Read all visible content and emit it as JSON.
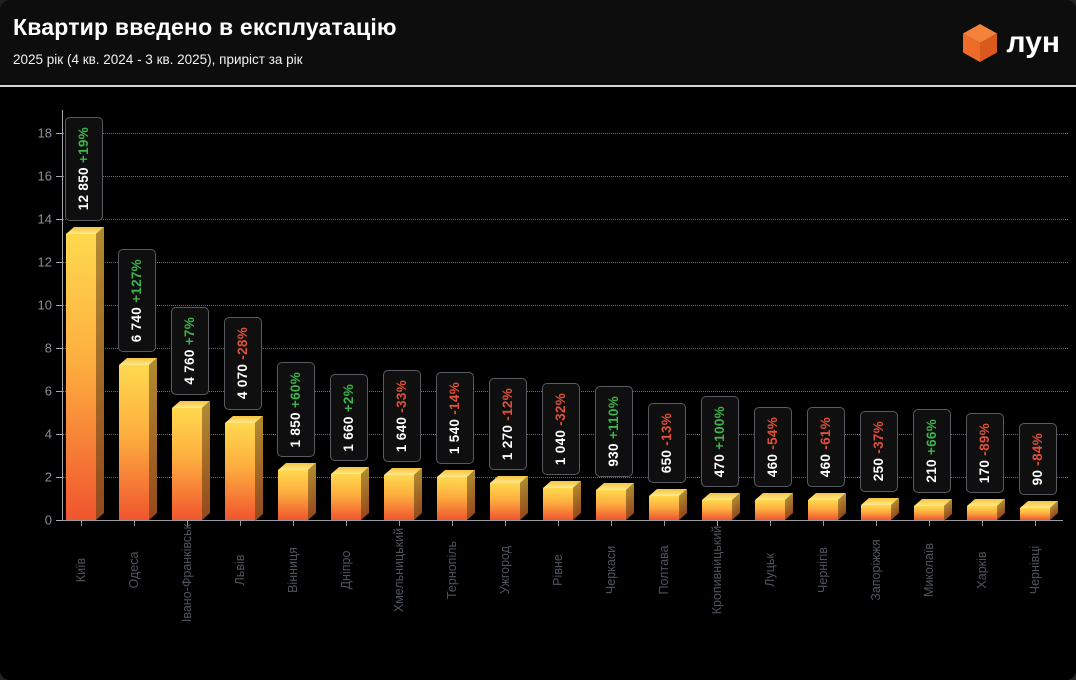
{
  "header": {
    "title": "Квартир введено в експлуатацію",
    "subtitle": "2025 рік (4 кв. 2024 - 3 кв. 2025), приріст за рік",
    "logo_text": "лун"
  },
  "chart_data": {
    "type": "bar",
    "title": "Квартир введено в експлуатацію",
    "subtitle": "2025 рік (4 кв. 2024 - 3 кв. 2025), приріст за рік",
    "xlabel": "",
    "ylabel": "",
    "ylim": [
      0,
      19
    ],
    "yticks": [
      0,
      2,
      4,
      6,
      8,
      10,
      12,
      14,
      16,
      18
    ],
    "y_axis_scale": 1000,
    "grid": "horizontal-dotted",
    "legend": "none",
    "categories": [
      "Київ",
      "Одеса",
      "Івано-Франківськ",
      "Львів",
      "Вінниця",
      "Дніпро",
      "Хмельницький",
      "Тернопіль",
      "Ужгород",
      "Рівне",
      "Черкаси",
      "Полтава",
      "Кропивницький",
      "Луцьк",
      "Чернігів",
      "Запоріжжя",
      "Миколаїв",
      "Харків",
      "Чернівці"
    ],
    "values": [
      12850,
      6740,
      4760,
      4070,
      1850,
      1660,
      1640,
      1540,
      1270,
      1040,
      930,
      650,
      470,
      460,
      460,
      250,
      210,
      170,
      90
    ],
    "value_labels": [
      "12 850",
      "6 740",
      "4 760",
      "4 070",
      "1 850",
      "1 660",
      "1 640",
      "1 540",
      "1 270",
      "1 040",
      "930",
      "650",
      "470",
      "460",
      "460",
      "250",
      "210",
      "170",
      "90"
    ],
    "change_labels": [
      "+19%",
      "+127%",
      "+7%",
      "-28%",
      "+60%",
      "+2%",
      "-33%",
      "-14%",
      "-12%",
      "-32%",
      "+110%",
      "-13%",
      "+100%",
      "-54%",
      "-61%",
      "-37%",
      "+66%",
      "-89%",
      "-84%"
    ],
    "colors": {
      "background": "#000000",
      "header_background": "#0d0d0d",
      "bar_gradient_top": "#ffd94e",
      "bar_gradient_bottom": "#f0552f",
      "positive_change": "#3cb54a",
      "negative_change": "#e2503a",
      "value_text": "#ffffff",
      "label_box_border": "#565b62",
      "axis": "#a9a9af",
      "y_tick_label": "#8b8f97",
      "city_label": "#4e545e",
      "logo_orange": "#f0782d"
    }
  }
}
